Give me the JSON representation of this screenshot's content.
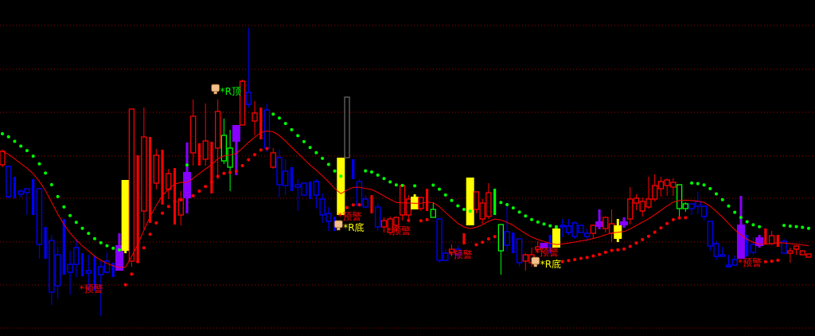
{
  "chart_data": {
    "type": "candlestick",
    "title": "",
    "grid": true,
    "background": "#000000",
    "colors": {
      "r": "#ff0000",
      "b": "#0000ff",
      "g": "#00ff00",
      "y": "#ffff00",
      "p": "#8800ff",
      "gr": "#666666",
      "ma": "#ff0000",
      "dot_up": "#ff0000",
      "dot_down": "#00ff00",
      "grid": "#aa0000"
    },
    "candle_fields": [
      "open",
      "close",
      "high",
      "low",
      "color",
      "hollow"
    ],
    "candles": [
      [
        24.3,
        26.0,
        26.2,
        24.0,
        "r",
        1
      ],
      [
        24.1,
        20.3,
        24.2,
        20.1,
        "b",
        1
      ],
      [
        22.8,
        20.1,
        22.8,
        20.1,
        "b",
        0
      ],
      [
        21.0,
        20.6,
        21.2,
        20.2,
        "b",
        1
      ],
      [
        21.3,
        20.8,
        21.3,
        18.0,
        "b",
        1
      ],
      [
        22.5,
        18.0,
        22.5,
        18.0,
        "b",
        0
      ],
      [
        21.3,
        14.3,
        21.3,
        12.5,
        "b",
        1
      ],
      [
        16.5,
        12.5,
        16.5,
        12.5,
        "b",
        0
      ],
      [
        14.8,
        8.3,
        15.5,
        6.7,
        "b",
        1
      ],
      [
        13.0,
        9.1,
        14.0,
        7.5,
        "b",
        1
      ],
      [
        17.5,
        10.5,
        17.5,
        10.5,
        "b",
        0
      ],
      [
        11.8,
        10.8,
        13.5,
        8.0,
        "b",
        1
      ],
      [
        13.9,
        11.8,
        15.0,
        10.2,
        "b",
        1
      ],
      [
        13.2,
        10.3,
        13.2,
        10.3,
        "b",
        0
      ],
      [
        11.0,
        10.7,
        13.0,
        8.5,
        "b",
        1
      ],
      [
        12.8,
        8.5,
        12.8,
        8.5,
        "b",
        0
      ],
      [
        11.5,
        10.5,
        12.2,
        5.3,
        "b",
        1
      ],
      [
        12.2,
        10.8,
        13.3,
        10.7,
        "b",
        1
      ],
      [
        12.0,
        10.2,
        12.0,
        10.2,
        "b",
        0
      ],
      [
        14.2,
        11.0,
        15.7,
        11.0,
        "p",
        0
      ],
      [
        22.4,
        13.5,
        22.4,
        13.2,
        "y",
        0
      ],
      [
        12.2,
        31.3,
        31.3,
        11.5,
        "r",
        1
      ],
      [
        12.0,
        25.5,
        25.5,
        12.0,
        "r",
        0
      ],
      [
        18.5,
        27.8,
        31.5,
        16.2,
        "r",
        1
      ],
      [
        17.0,
        27.8,
        27.8,
        17.0,
        "r",
        0
      ],
      [
        22.0,
        25.5,
        26.3,
        21.2,
        "r",
        1
      ],
      [
        19.3,
        26.2,
        26.2,
        19.3,
        "r",
        0
      ],
      [
        21.2,
        23.2,
        23.8,
        20.0,
        "r",
        1
      ],
      [
        16.8,
        23.9,
        23.9,
        16.8,
        "r",
        0
      ],
      [
        18.0,
        20.0,
        21.0,
        16.7,
        "r",
        1
      ],
      [
        23.4,
        20.1,
        27.1,
        18.2,
        "p",
        0
      ],
      [
        25.8,
        30.4,
        32.5,
        24.2,
        "r",
        1
      ],
      [
        24.2,
        27.0,
        27.0,
        24.2,
        "r",
        0
      ],
      [
        25.0,
        27.3,
        32.0,
        24.2,
        "r",
        1
      ],
      [
        20.7,
        27.2,
        27.2,
        20.7,
        "r",
        0
      ],
      [
        26.4,
        31.0,
        32.5,
        22.5,
        "r",
        1
      ],
      [
        28.0,
        24.8,
        30.1,
        24.4,
        "g",
        1
      ],
      [
        26.4,
        24.0,
        28.7,
        21.0,
        "g",
        1
      ],
      [
        29.3,
        27.2,
        29.3,
        23.0,
        "p",
        0
      ],
      [
        29.3,
        34.8,
        35.0,
        29.3,
        "r",
        1
      ],
      [
        33.4,
        31.9,
        41.5,
        31.5,
        "b",
        1
      ],
      [
        29.8,
        30.8,
        32.3,
        28.0,
        "r",
        1
      ],
      [
        27.5,
        31.5,
        31.5,
        27.5,
        "r",
        0
      ],
      [
        31.2,
        26.4,
        32.0,
        25.9,
        "b",
        1
      ],
      [
        24.0,
        25.8,
        26.4,
        23.8,
        "r",
        1
      ],
      [
        25.2,
        21.8,
        26.2,
        20.2,
        "b",
        1
      ],
      [
        23.5,
        21.7,
        25.0,
        20.5,
        "b",
        1
      ],
      [
        24.0,
        21.0,
        24.0,
        21.0,
        "b",
        0
      ],
      [
        21.8,
        21.5,
        22.5,
        18.5,
        "b",
        1
      ],
      [
        22.0,
        20.5,
        22.0,
        20.5,
        "b",
        1
      ],
      [
        22.2,
        20.0,
        22.2,
        20.0,
        "b",
        0
      ],
      [
        22.2,
        20.5,
        22.5,
        18.8,
        "b",
        1
      ],
      [
        20.0,
        18.0,
        20.7,
        17.0,
        "b",
        1
      ],
      [
        18.2,
        17.2,
        19.0,
        16.0,
        "b",
        1
      ],
      [
        17.8,
        16.0,
        17.8,
        16.0,
        "b",
        0
      ],
      [
        25.2,
        18.0,
        25.2,
        18.0,
        "y",
        0
      ],
      [
        25.2,
        32.8,
        32.8,
        25.2,
        "gr",
        1
      ],
      [
        25.0,
        22.5,
        25.0,
        22.5,
        "b",
        0
      ],
      [
        22.2,
        19.2,
        22.5,
        19.0,
        "b",
        1
      ],
      [
        20.0,
        19.0,
        20.5,
        18.8,
        "b",
        1
      ],
      [
        18.2,
        20.5,
        20.5,
        18.2,
        "r",
        0
      ],
      [
        19.0,
        16.5,
        19.5,
        16.0,
        "b",
        1
      ],
      [
        16.5,
        17.3,
        17.7,
        15.8,
        "r",
        1
      ],
      [
        15.8,
        17.5,
        17.8,
        15.5,
        "r",
        1
      ],
      [
        16.7,
        17.7,
        17.8,
        16.0,
        "r",
        1
      ],
      [
        18.0,
        21.7,
        21.8,
        17.3,
        "r",
        1
      ],
      [
        18.0,
        20.0,
        20.5,
        17.2,
        "r",
        1
      ],
      [
        20.3,
        18.7,
        20.6,
        18.7,
        "y",
        0
      ],
      [
        18.8,
        20.2,
        20.3,
        18.5,
        "r",
        1
      ],
      [
        18.5,
        21.3,
        21.3,
        18.5,
        "r",
        0
      ],
      [
        18.7,
        17.7,
        19.5,
        17.7,
        "g",
        1
      ],
      [
        17.5,
        12.3,
        17.6,
        12.0,
        "b",
        1
      ],
      [
        13.2,
        12.3,
        13.7,
        12.2,
        "b",
        1
      ],
      [
        13.3,
        13.7,
        14.3,
        12.8,
        "r",
        1
      ],
      [
        13.7,
        13.0,
        14.2,
        12.5,
        "b",
        1
      ],
      [
        14.3,
        15.7,
        15.7,
        14.3,
        "r",
        0
      ],
      [
        22.7,
        16.7,
        22.7,
        16.7,
        "y",
        0
      ],
      [
        18.7,
        20.9,
        20.9,
        18.2,
        "r",
        1
      ],
      [
        17.5,
        19.5,
        20.0,
        16.9,
        "r",
        1
      ],
      [
        17.8,
        20.8,
        22.0,
        17.5,
        "r",
        1
      ],
      [
        21.3,
        18.0,
        21.3,
        18.0,
        "g",
        0
      ],
      [
        16.8,
        13.5,
        16.8,
        10.5,
        "g",
        1
      ],
      [
        15.9,
        14.2,
        19.5,
        13.5,
        "b",
        1
      ],
      [
        15.8,
        13.2,
        15.8,
        13.2,
        "b",
        0
      ],
      [
        15.0,
        12.0,
        15.0,
        11.5,
        "b",
        1
      ],
      [
        12.2,
        13.0,
        13.2,
        11.0,
        "r",
        1
      ],
      [
        12.0,
        13.0,
        13.9,
        11.5,
        "r",
        1
      ],
      [
        13.7,
        14.0,
        14.7,
        13.2,
        "r",
        1
      ],
      [
        14.5,
        13.8,
        14.5,
        13.8,
        "p",
        0
      ],
      [
        15.5,
        13.2,
        15.5,
        13.2,
        "b",
        0
      ],
      [
        16.3,
        13.9,
        16.7,
        13.9,
        "y",
        0
      ],
      [
        16.7,
        16.5,
        17.5,
        15.2,
        "b",
        1
      ],
      [
        16.6,
        15.8,
        17.5,
        15.5,
        "b",
        1
      ],
      [
        17.0,
        15.3,
        17.2,
        15.0,
        "b",
        1
      ],
      [
        16.7,
        15.8,
        16.7,
        15.8,
        "b",
        1
      ],
      [
        15.7,
        15.3,
        16.3,
        14.7,
        "b",
        1
      ],
      [
        15.7,
        16.7,
        16.8,
        15.0,
        "r",
        1
      ],
      [
        17.2,
        16.5,
        18.7,
        16.2,
        "p",
        0
      ],
      [
        16.3,
        17.7,
        17.8,
        15.8,
        "r",
        1
      ],
      [
        15.7,
        16.9,
        18.7,
        14.6,
        "r",
        1
      ],
      [
        16.7,
        15.0,
        17.5,
        14.6,
        "y",
        0
      ],
      [
        17.2,
        16.7,
        17.7,
        16.4,
        "p",
        0
      ],
      [
        17.5,
        20.0,
        21.5,
        16.8,
        "r",
        1
      ],
      [
        19.5,
        20.1,
        20.6,
        18.6,
        "r",
        1
      ],
      [
        18.5,
        19.7,
        20.2,
        17.8,
        "r",
        1
      ],
      [
        19.0,
        20.0,
        22.8,
        18.8,
        "r",
        1
      ],
      [
        20.0,
        21.7,
        23.1,
        19.7,
        "r",
        1
      ],
      [
        21.3,
        22.2,
        22.8,
        20.3,
        "r",
        1
      ],
      [
        21.7,
        22.4,
        22.6,
        20.4,
        "r",
        1
      ],
      [
        21.5,
        22.1,
        22.6,
        20.4,
        "r",
        1
      ],
      [
        21.8,
        18.8,
        21.8,
        17.8,
        "g",
        1
      ],
      [
        19.4,
        18.8,
        19.6,
        18.4,
        "g",
        1
      ],
      [
        19.4,
        18.8,
        19.5,
        18.0,
        "b",
        1
      ],
      [
        19.7,
        19.1,
        20.9,
        18.1,
        "b",
        1
      ],
      [
        19.1,
        17.8,
        19.2,
        17.3,
        "b",
        1
      ],
      [
        17.2,
        14.1,
        17.2,
        13.5,
        "b",
        1
      ],
      [
        14.4,
        12.8,
        14.7,
        12.4,
        "b",
        1
      ],
      [
        13.0,
        12.8,
        14.0,
        12.8,
        "b",
        1
      ],
      [
        11.7,
        11.5,
        13.0,
        11.4,
        "b",
        1
      ],
      [
        12.4,
        11.7,
        12.9,
        11.6,
        "b",
        1
      ],
      [
        16.8,
        12.5,
        20.4,
        12.5,
        "p",
        0
      ],
      [
        15.5,
        12.8,
        15.5,
        12.8,
        "b",
        0
      ],
      [
        14.3,
        13.3,
        15.2,
        13.0,
        "b",
        1
      ],
      [
        15.2,
        14.1,
        15.5,
        13.9,
        "p",
        0
      ],
      [
        14.3,
        16.3,
        16.3,
        14.3,
        "r",
        0
      ],
      [
        14.4,
        15.4,
        16.0,
        14.2,
        "r",
        1
      ],
      [
        14.0,
        15.5,
        15.5,
        14.0,
        "r",
        0
      ],
      [
        14.7,
        13.2,
        15.0,
        13.2,
        "b",
        1
      ],
      [
        13.2,
        13.5,
        13.9,
        12.0,
        "r",
        1
      ],
      [
        13.7,
        14.1,
        14.2,
        13.0,
        "r",
        1
      ],
      [
        13.0,
        13.5,
        13.6,
        13.0,
        "r",
        1
      ],
      [
        12.7,
        13.1,
        13.1,
        12.7,
        "r",
        1
      ]
    ],
    "signals": [
      {
        "label": "*R顶",
        "bar": 35,
        "value": 33.5,
        "color": "#00ff00",
        "icon": "hand-pointer-icon"
      },
      {
        "label": "*预警",
        "bar": 13,
        "value": 8.7,
        "color": "#ff0000"
      },
      {
        "label": "*预警",
        "bar": 55,
        "value": 17.8,
        "color": "#ff0000"
      },
      {
        "label": "*R底",
        "bar": 55,
        "value": 16.4,
        "color": "#ffff00",
        "icon": "hand-pointer-icon"
      },
      {
        "label": "*预警",
        "bar": 63,
        "value": 16.0,
        "color": "#ff0000"
      },
      {
        "label": "*预警",
        "bar": 73,
        "value": 13.0,
        "color": "#ff0000"
      },
      {
        "label": "*预警",
        "bar": 87,
        "value": 13.3,
        "color": "#ff0000"
      },
      {
        "label": "*R底",
        "bar": 87,
        "value": 11.8,
        "color": "#ffff00",
        "icon": "hand-pointer-icon"
      },
      {
        "label": "*预警",
        "bar": 120,
        "value": 12.0,
        "color": "#ff0000"
      }
    ]
  }
}
